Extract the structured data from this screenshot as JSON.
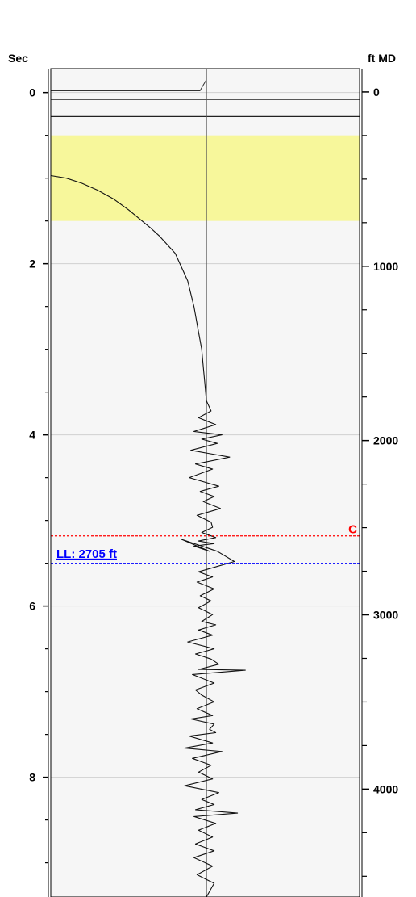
{
  "chart_data": {
    "type": "line",
    "title": "",
    "left_axis": {
      "title": "Sec",
      "range": [
        -0.28,
        9.4
      ],
      "tick_labels": [
        "0",
        "2",
        "4",
        "6",
        "8"
      ],
      "ticks": [
        0,
        2,
        4,
        6,
        8
      ],
      "minor_step": 0.5
    },
    "right_axis": {
      "title": "ft MD",
      "range": [
        -134,
        4619
      ],
      "tick_labels": [
        "0",
        "1000",
        "2000",
        "3000",
        "4000"
      ],
      "ticks": [
        0,
        1000,
        2000,
        3000,
        4000
      ],
      "minor_step": 250
    },
    "grid": true,
    "highlight_band": {
      "from": 0.5,
      "to": 1.5,
      "unit": "Sec",
      "color": "#f7f79b"
    },
    "markers": [
      {
        "label": "C",
        "value": 5.18,
        "unit": "Sec",
        "color": "#ff0000",
        "style": "dashed"
      },
      {
        "label": "LL: 2705 ft",
        "value": 2705,
        "unit": "ft MD",
        "color": "#0000ff",
        "style": "dashed"
      }
    ],
    "reference_line": {
      "x": 0
    },
    "horizontal_lines": [
      0.08,
      0.28
    ],
    "series": [
      {
        "type": "curve",
        "x": [
          1.0,
          0.9,
          0.8,
          0.7,
          0.6,
          0.5,
          0.4,
          0.36,
          0.3,
          0.2,
          0.12,
          0.08,
          0.05,
          0.03,
          0.02,
          0.01,
          0.0
        ],
        "y": [
          0.97,
          1.0,
          1.06,
          1.14,
          1.24,
          1.37,
          1.52,
          1.58,
          1.68,
          1.88,
          2.2,
          2.5,
          2.8,
          3.0,
          3.2,
          3.4,
          3.6
        ]
      },
      {
        "type": "trace",
        "x": [
          0.0,
          0.03,
          -0.05,
          0.06,
          -0.08,
          0.1,
          -0.03,
          0.07,
          -0.1,
          0.15,
          -0.07,
          0.04,
          -0.11,
          0.08,
          -0.04,
          0.05,
          -0.02,
          0.09,
          -0.06,
          0.03,
          0.04,
          -0.03,
          0.06,
          -0.05,
          0.05,
          -0.08,
          0.02,
          -0.16,
          0.07,
          0.18,
          -0.05,
          0.04,
          -0.06,
          0.05,
          -0.04,
          0.03,
          -0.05,
          0.04,
          -0.03,
          0.06,
          -0.05,
          0.04,
          -0.12,
          0.05,
          -0.07,
          0.03,
          0.08,
          -0.05,
          0.25,
          -0.09,
          0.05,
          -0.07,
          -0.03,
          0.05,
          -0.06,
          0.04,
          -0.1,
          0.05,
          0.02,
          0.06,
          -0.11,
          0.04,
          -0.14,
          0.1,
          -0.09,
          0.03,
          -0.05,
          0.04,
          -0.14,
          0.08,
          -0.03,
          0.05,
          -0.07,
          0.2,
          -0.08,
          0.06,
          -0.05,
          0.04,
          -0.07,
          0.05,
          -0.08,
          0.04,
          -0.06,
          0.05,
          0.0
        ],
        "y": [
          3.6,
          3.72,
          3.8,
          3.88,
          3.96,
          4.0,
          4.05,
          4.1,
          4.18,
          4.26,
          4.34,
          4.4,
          4.5,
          4.6,
          4.66,
          4.72,
          4.78,
          4.86,
          4.94,
          5.02,
          5.08,
          5.14,
          5.2,
          5.24,
          5.27,
          5.3,
          5.36,
          5.22,
          5.36,
          5.48,
          5.6,
          5.66,
          5.72,
          5.8,
          5.88,
          5.94,
          6.02,
          6.1,
          6.18,
          6.22,
          6.28,
          6.34,
          6.42,
          6.5,
          6.56,
          6.62,
          6.68,
          6.74,
          6.75,
          6.8,
          6.9,
          6.98,
          7.04,
          7.12,
          7.2,
          7.28,
          7.32,
          7.38,
          7.44,
          7.48,
          7.52,
          7.6,
          7.66,
          7.7,
          7.78,
          7.86,
          7.94,
          8.02,
          8.1,
          8.18,
          8.26,
          8.32,
          8.38,
          8.42,
          8.46,
          8.54,
          8.62,
          8.7,
          8.78,
          8.86,
          8.94,
          9.04,
          9.14,
          9.24,
          9.4
        ]
      }
    ],
    "annotations": [
      {
        "text": "C",
        "color": "#ff0000"
      },
      {
        "text": "LL: 2705 ft",
        "color": "#0000ff"
      }
    ]
  }
}
